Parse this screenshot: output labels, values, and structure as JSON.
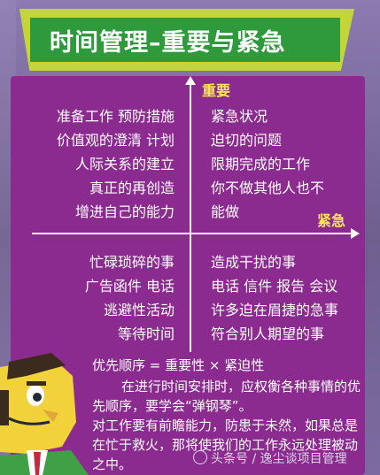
{
  "title": "时间管理–重要与紧急",
  "axes": {
    "vertical_label": "重要",
    "horizontal_label": "紧急"
  },
  "quadrants": {
    "top_left": [
      "准备工作 预防措施",
      "价值观的澄清 计划",
      "人际关系的建立",
      "真正的再创造",
      "增进自己的能力"
    ],
    "top_right": [
      "紧急状况",
      "迫切的问题",
      "限期完成的工作",
      "你不做其他人也不",
      "能做"
    ],
    "bottom_left": [
      "忙碌琐碎的事",
      "广告函件 电话",
      "逃避性活动",
      "等待时间"
    ],
    "bottom_right": [
      "造成干扰的事",
      "电话 信件 报告 会议",
      "许多迫在眉捷的急事",
      "符合别人期望的事"
    ]
  },
  "formula": "优先顺序 = 重要性 × 紧迫性",
  "paragraphs": [
    "在进行时间安排时，应权衡各种事情的优先顺序，要学会“弹钢琴”。",
    "对工作要有前瞻能力，防患于未然，如果总是在忙于救火，那将使我们的工作永远处理被动之中。"
  ],
  "watermark": "头条号 / 逸尘谈项目管理",
  "colors": {
    "background": "#6e5f8f",
    "title_banner": "#c2d63a",
    "title_inner": "#2e9a3c",
    "panel": "#8b2a8f",
    "axis_label": "#ffe65a"
  },
  "icons": {
    "character": "headset-character-icon",
    "watermark": "toutiao-logo-icon"
  }
}
